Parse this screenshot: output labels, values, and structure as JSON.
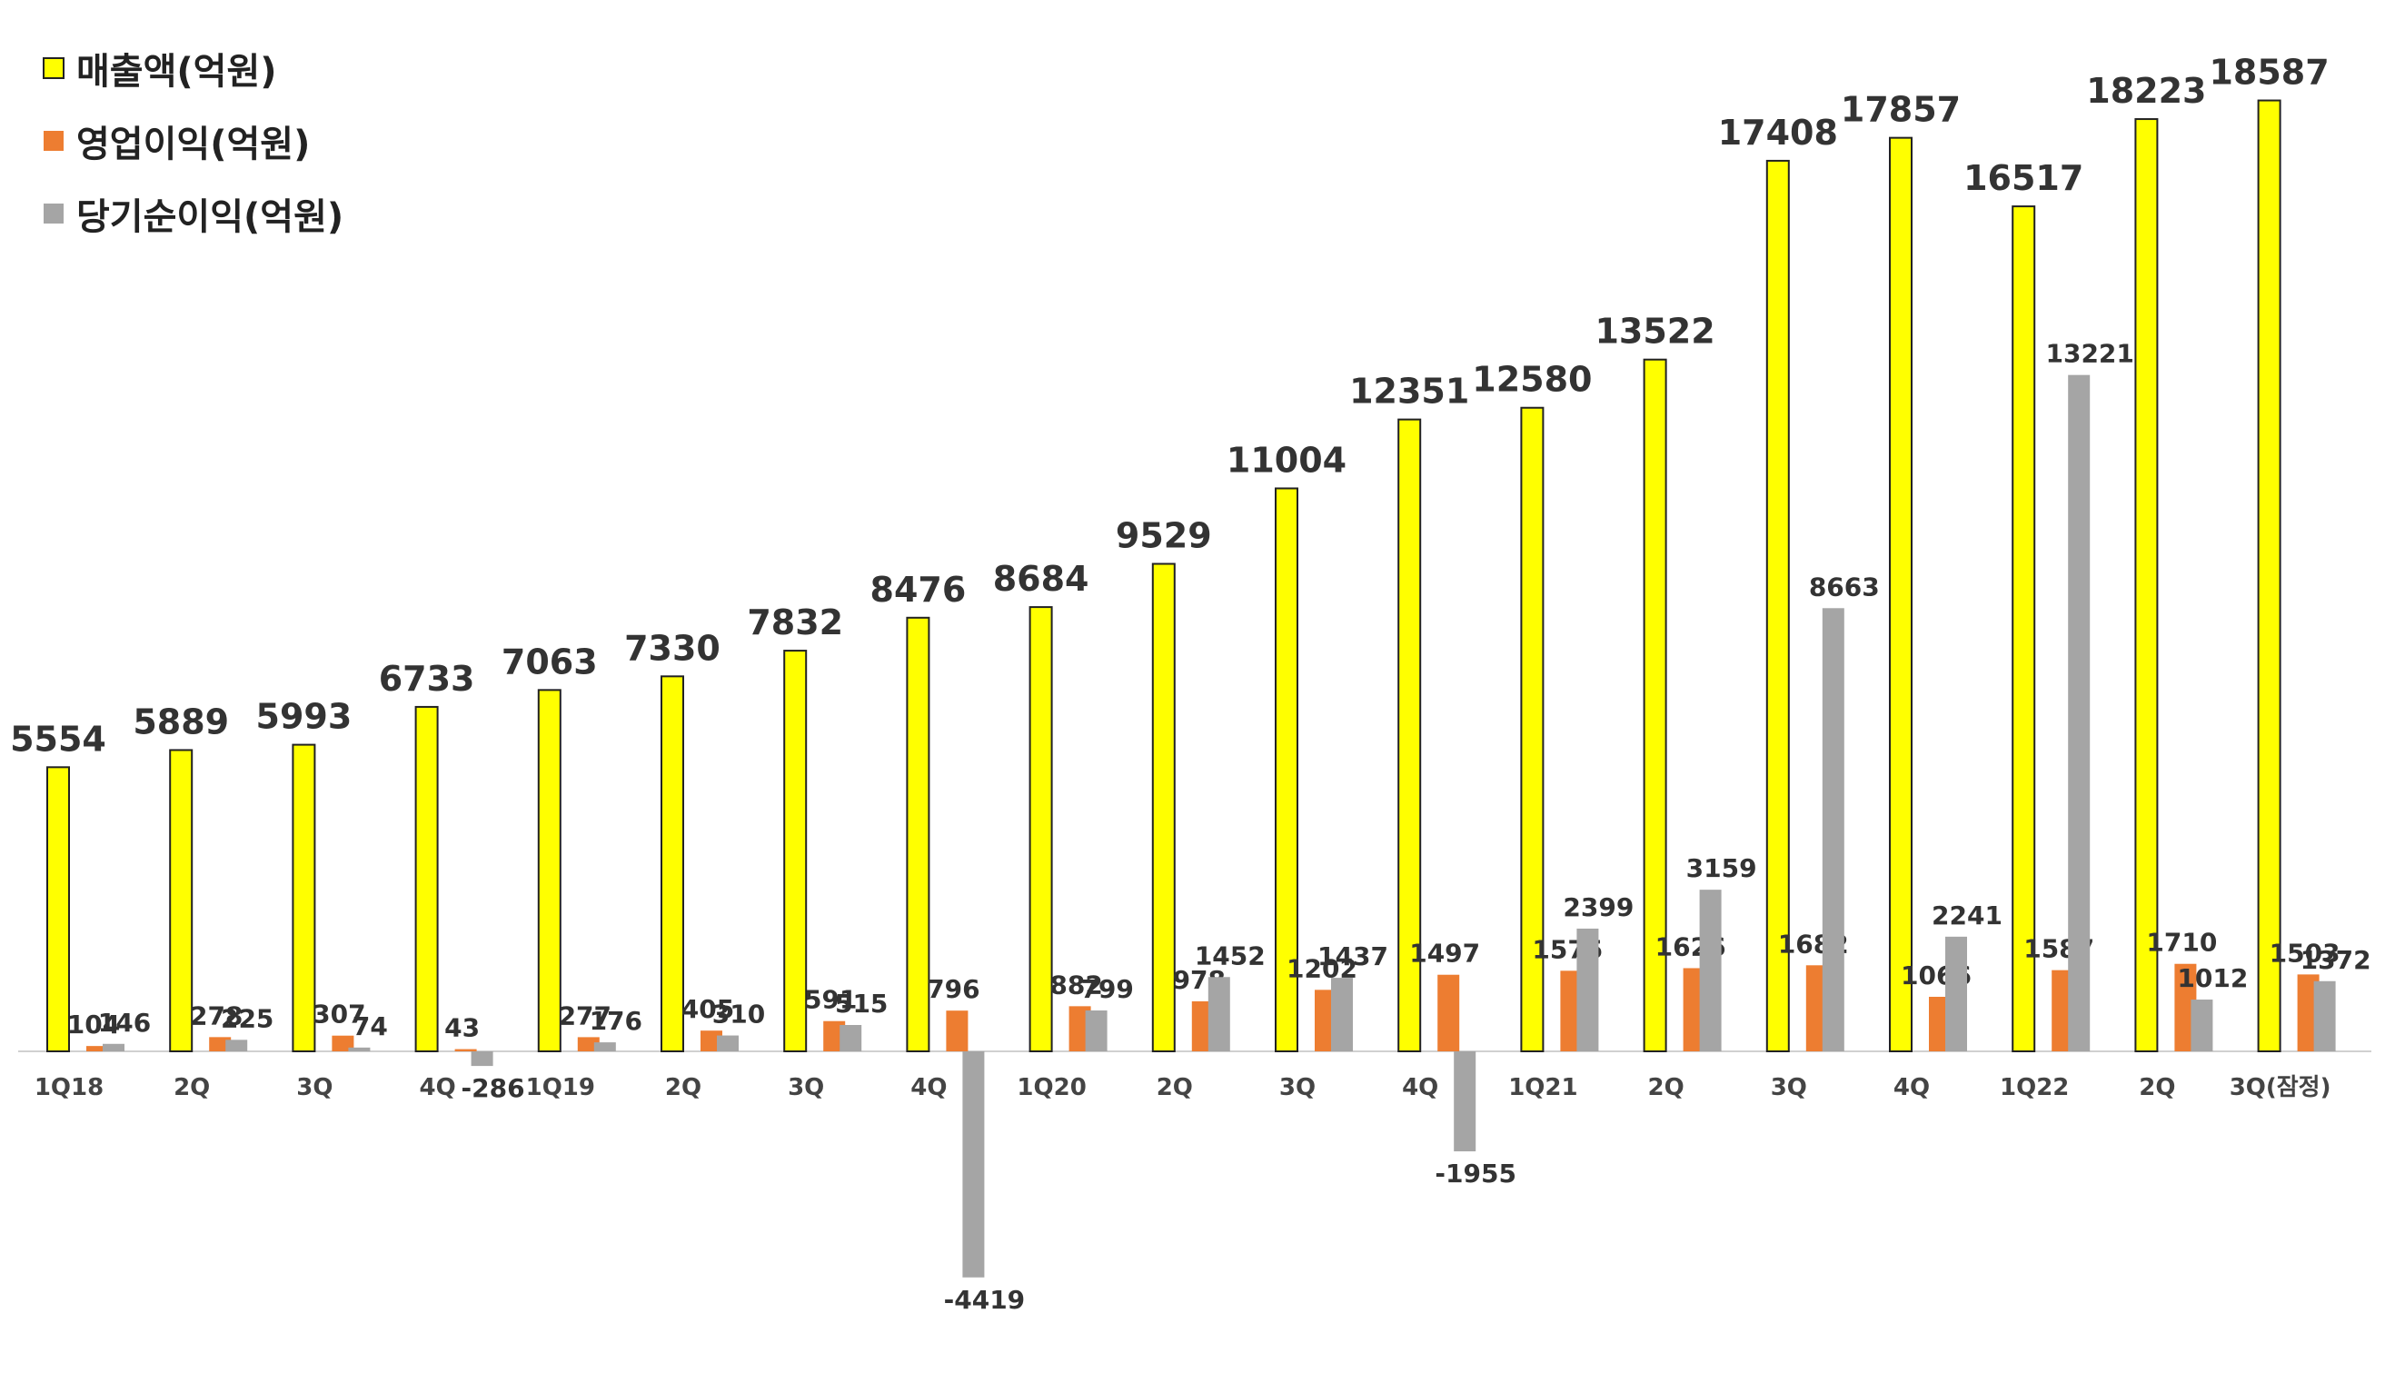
{
  "chart_data": {
    "type": "bar",
    "title": "",
    "xlabel": "",
    "ylabel": "",
    "unit": "억원",
    "ylim": [
      -5000,
      20000
    ],
    "grid": false,
    "legend_position": "top-left",
    "categories": [
      "1Q18",
      "2Q",
      "3Q",
      "4Q",
      "1Q19",
      "2Q",
      "3Q",
      "4Q",
      "1Q20",
      "2Q",
      "3Q",
      "4Q",
      "1Q21",
      "2Q",
      "3Q",
      "4Q",
      "1Q22",
      "2Q",
      "3Q(잠정)"
    ],
    "series": [
      {
        "name": "매출액(억원)",
        "color": "#FFFF00",
        "stroke": "#222222",
        "values": [
          5554,
          5889,
          5993,
          6733,
          7063,
          7330,
          7832,
          8476,
          8684,
          9529,
          11004,
          12351,
          12580,
          13522,
          17408,
          17857,
          16517,
          18223,
          18587
        ]
      },
      {
        "name": "영업이익(억원)",
        "color": "#ED7D31",
        "stroke": "none",
        "values": [
          104,
          278,
          307,
          43,
          277,
          405,
          591,
          796,
          882,
          978,
          1202,
          1497,
          1575,
          1626,
          1682,
          1066,
          1587,
          1710,
          1503
        ]
      },
      {
        "name": "당기순이익(억원)",
        "color": "#A5A5A5",
        "stroke": "none",
        "values": [
          146,
          225,
          74,
          -286,
          176,
          310,
          515,
          -4419,
          799,
          1452,
          1437,
          -1955,
          2399,
          3159,
          8663,
          2241,
          13221,
          1012,
          1372
        ]
      }
    ]
  }
}
